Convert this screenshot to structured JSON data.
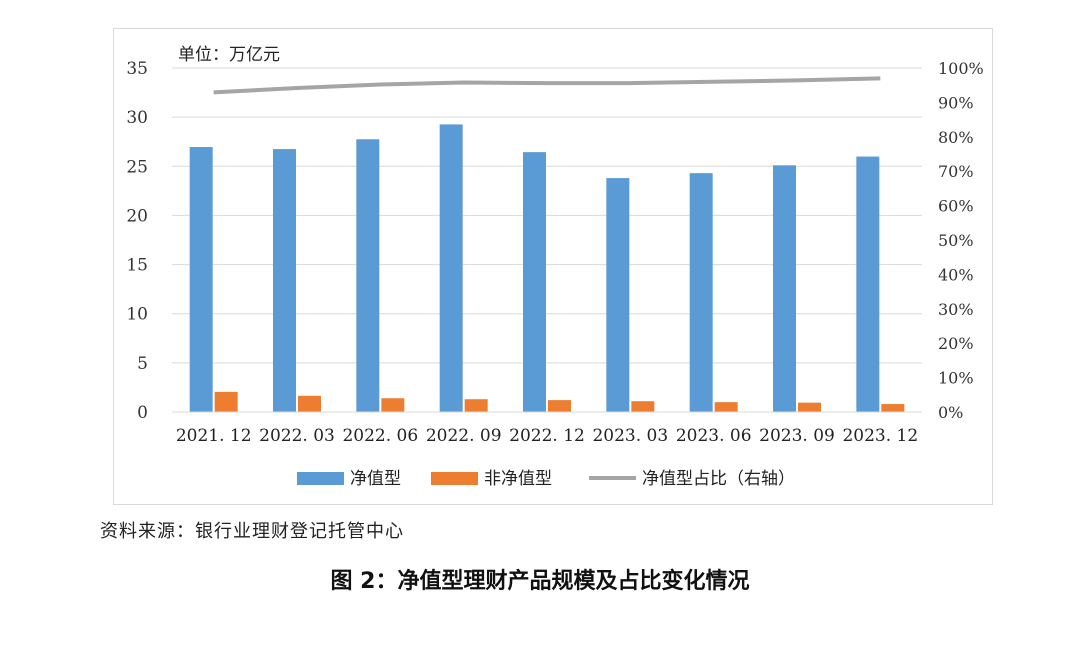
{
  "figure": {
    "caption": "图 2：净值型理财产品规模及占比变化情况",
    "source": "资料来源：银行业理财登记托管中心"
  },
  "colors": {
    "net_value": "#5b9bd5",
    "non_net_value": "#ed7d31",
    "ratio": "#a5a5a5",
    "grid": "#d9d9d9"
  },
  "chart_data": {
    "type": "bar",
    "unit_label": "单位：万亿元",
    "categories": [
      "2021. 12",
      "2022. 03",
      "2022. 06",
      "2022. 09",
      "2022. 12",
      "2023. 03",
      "2023. 06",
      "2023. 09",
      "2023. 12"
    ],
    "series": [
      {
        "name": "净值型",
        "type": "bar",
        "axis": "left",
        "values": [
          26.96,
          26.75,
          27.75,
          29.26,
          26.44,
          23.8,
          24.3,
          25.1,
          25.99
        ]
      },
      {
        "name": "非净值型",
        "type": "bar",
        "axis": "left",
        "values": [
          2.05,
          1.65,
          1.4,
          1.3,
          1.21,
          1.1,
          1.0,
          0.95,
          0.81
        ]
      },
      {
        "name": "净值型占比（右轴）",
        "type": "line",
        "axis": "right",
        "values": [
          0.929,
          0.942,
          0.952,
          0.958,
          0.956,
          0.956,
          0.96,
          0.964,
          0.97
        ]
      }
    ],
    "y_left": {
      "ylim": [
        0,
        35
      ],
      "ticks": [
        "0",
        "5",
        "10",
        "15",
        "20",
        "25",
        "30",
        "35"
      ]
    },
    "y_right": {
      "ylim": [
        0,
        1
      ],
      "ticks": [
        "0%",
        "10%",
        "20%",
        "30%",
        "40%",
        "50%",
        "60%",
        "70%",
        "80%",
        "90%",
        "100%"
      ]
    },
    "grid": true,
    "legend_position": "bottom"
  }
}
